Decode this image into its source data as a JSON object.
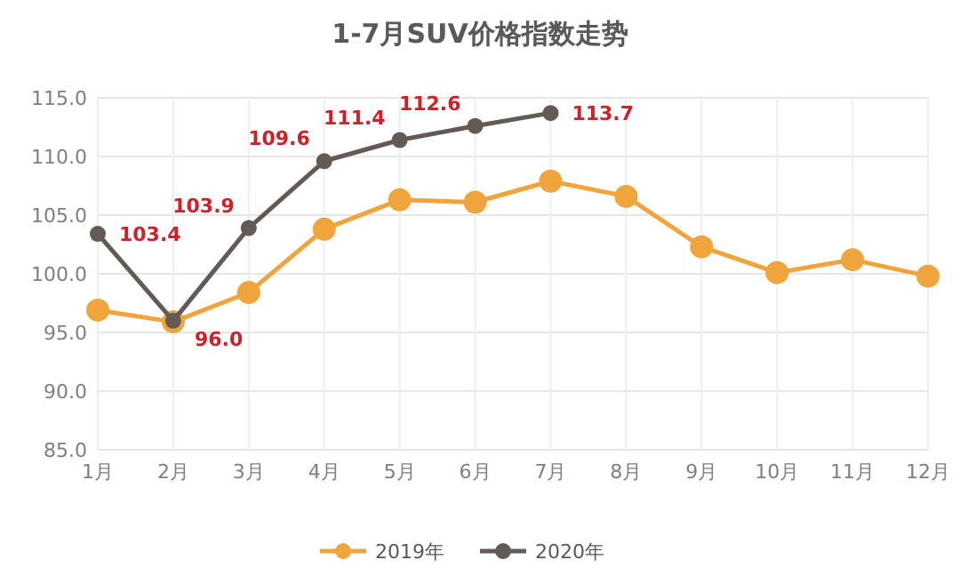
{
  "chart_data": {
    "type": "line",
    "title": "1-7月SUV价格指数走势",
    "categories": [
      "1月",
      "2月",
      "3月",
      "4月",
      "5月",
      "6月",
      "7月",
      "8月",
      "9月",
      "10月",
      "11月",
      "12月"
    ],
    "series": [
      {
        "name": "2019年",
        "color": "#f0a53c",
        "values": [
          96.9,
          95.9,
          98.4,
          103.8,
          106.3,
          106.1,
          107.9,
          106.6,
          102.3,
          100.1,
          101.2,
          99.8
        ]
      },
      {
        "name": "2020年",
        "color": "#645a55",
        "values": [
          103.4,
          96.0,
          103.9,
          109.6,
          111.4,
          112.6,
          113.7,
          null,
          null,
          null,
          null,
          null
        ],
        "value_labels": [
          "103.4",
          "96.0",
          "103.9",
          "109.6",
          "111.4",
          "112.6",
          "113.7",
          null,
          null,
          null,
          null,
          null
        ]
      }
    ],
    "ylim": [
      85,
      115
    ],
    "yticks": [
      {
        "value": 85,
        "label": "85.0"
      },
      {
        "value": 90,
        "label": "90.0"
      },
      {
        "value": 95,
        "label": "95.0"
      },
      {
        "value": 100,
        "label": "100.0"
      },
      {
        "value": 105,
        "label": "105.0"
      },
      {
        "value": 110,
        "label": "110.0"
      },
      {
        "value": 115,
        "label": "115.0"
      }
    ],
    "grid": true,
    "legend": "bottom",
    "marker": "circle",
    "line_style": "solid"
  }
}
